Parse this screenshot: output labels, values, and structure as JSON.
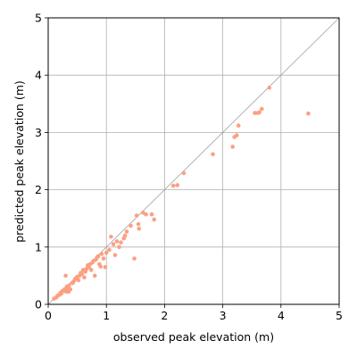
{
  "chart_data": {
    "type": "scatter",
    "title": "",
    "xlabel": "observed peak elevation (m)",
    "ylabel": "predicted peak elevation (m)",
    "xlim": [
      0,
      5
    ],
    "ylim": [
      0,
      5
    ],
    "xticks": [
      "0",
      "1",
      "2",
      "3",
      "4",
      "5"
    ],
    "yticks": [
      "0",
      "1",
      "2",
      "3",
      "4",
      "5"
    ],
    "grid": true,
    "reference_line": "y = x",
    "colors": {
      "points": "#fca082",
      "grid": "#b0b0b0",
      "reference": "#a0a0a0"
    },
    "series": [
      {
        "points": [
          [
            0.1,
            0.1
          ],
          [
            0.14,
            0.12
          ],
          [
            0.16,
            0.15
          ],
          [
            0.18,
            0.16
          ],
          [
            0.2,
            0.17
          ],
          [
            0.21,
            0.2
          ],
          [
            0.23,
            0.19
          ],
          [
            0.24,
            0.23
          ],
          [
            0.26,
            0.24
          ],
          [
            0.28,
            0.26
          ],
          [
            0.3,
            0.27
          ],
          [
            0.31,
            0.22
          ],
          [
            0.32,
            0.31
          ],
          [
            0.34,
            0.28
          ],
          [
            0.35,
            0.22
          ],
          [
            0.36,
            0.33
          ],
          [
            0.38,
            0.26
          ],
          [
            0.3,
            0.5
          ],
          [
            0.42,
            0.37
          ],
          [
            0.44,
            0.4
          ],
          [
            0.46,
            0.44
          ],
          [
            0.48,
            0.46
          ],
          [
            0.5,
            0.48
          ],
          [
            0.52,
            0.42
          ],
          [
            0.54,
            0.5
          ],
          [
            0.56,
            0.55
          ],
          [
            0.58,
            0.53
          ],
          [
            0.6,
            0.6
          ],
          [
            0.62,
            0.47
          ],
          [
            0.64,
            0.57
          ],
          [
            0.66,
            0.62
          ],
          [
            0.68,
            0.68
          ],
          [
            0.7,
            0.65
          ],
          [
            0.72,
            0.7
          ],
          [
            0.74,
            0.6
          ],
          [
            0.76,
            0.73
          ],
          [
            0.78,
            0.76
          ],
          [
            0.8,
            0.5
          ],
          [
            0.82,
            0.78
          ],
          [
            0.84,
            0.82
          ],
          [
            0.86,
            0.84
          ],
          [
            0.88,
            0.7
          ],
          [
            0.9,
            0.66
          ],
          [
            0.92,
            0.88
          ],
          [
            0.95,
            0.8
          ],
          [
            0.98,
            0.65
          ],
          [
            1.0,
            0.9
          ],
          [
            1.05,
            0.95
          ],
          [
            1.08,
            1.18
          ],
          [
            1.12,
            1.05
          ],
          [
            1.15,
            0.86
          ],
          [
            1.18,
            1.1
          ],
          [
            1.22,
            1.0
          ],
          [
            1.25,
            1.08
          ],
          [
            1.3,
            1.15
          ],
          [
            1.32,
            1.2
          ],
          [
            1.35,
            1.27
          ],
          [
            1.42,
            1.37
          ],
          [
            1.48,
            0.8
          ],
          [
            1.52,
            1.55
          ],
          [
            1.55,
            1.4
          ],
          [
            1.56,
            1.32
          ],
          [
            1.63,
            1.6
          ],
          [
            1.68,
            1.57
          ],
          [
            1.78,
            1.57
          ],
          [
            1.82,
            1.48
          ],
          [
            2.15,
            2.07
          ],
          [
            2.22,
            2.08
          ],
          [
            2.33,
            2.29
          ],
          [
            2.83,
            2.62
          ],
          [
            3.17,
            2.75
          ],
          [
            3.2,
            2.92
          ],
          [
            3.24,
            2.95
          ],
          [
            3.27,
            3.12
          ],
          [
            3.55,
            3.34
          ],
          [
            3.6,
            3.34
          ],
          [
            3.63,
            3.35
          ],
          [
            3.67,
            3.41
          ],
          [
            3.8,
            3.78
          ],
          [
            4.47,
            3.33
          ]
        ]
      }
    ]
  }
}
